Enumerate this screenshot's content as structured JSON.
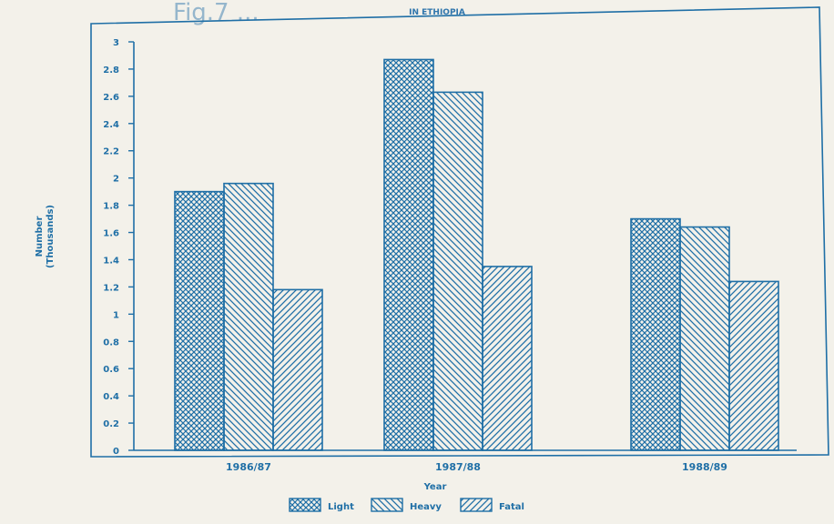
{
  "chart_data": {
    "type": "bar",
    "title": "Fig.7 ...",
    "subtitle": "IN ETHIOPIA",
    "xlabel": "Year",
    "ylabel": "Number",
    "ylabel_sub": "(Thousands)",
    "categories": [
      "1986/87",
      "1987/88",
      "1988/89"
    ],
    "series": [
      {
        "name": "Light",
        "values": [
          1.9,
          2.87,
          1.7
        ]
      },
      {
        "name": "Heavy",
        "values": [
          1.96,
          2.63,
          1.64
        ]
      },
      {
        "name": "Fatal",
        "values": [
          1.18,
          1.35,
          1.24
        ]
      }
    ],
    "ylim": [
      0,
      3
    ],
    "yticks": [
      "0",
      "0.2",
      "0.4",
      "0.6",
      "0.8",
      "1",
      "1.2",
      "1.4",
      "1.6",
      "1.8",
      "2",
      "2.2",
      "2.4",
      "2.6",
      "2.8",
      "3"
    ],
    "grid": false,
    "legend_position": "bottom",
    "colors": {
      "ink": "#1f6fa6",
      "paper": "#f3f1ea"
    }
  }
}
